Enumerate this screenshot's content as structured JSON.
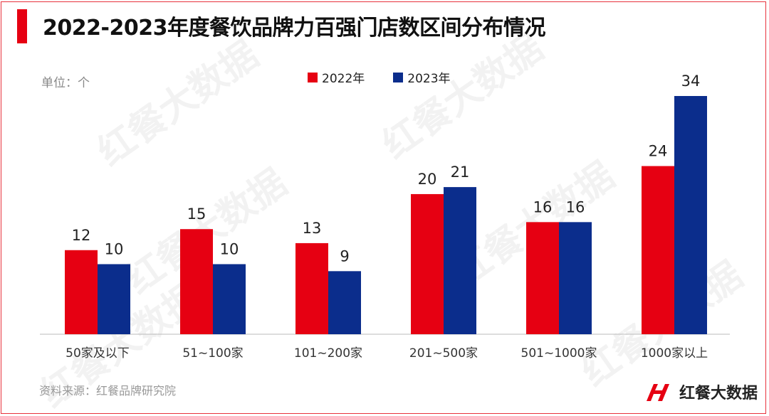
{
  "title": "2022-2023年度餐饮品牌力百强门店数区间分布情况",
  "unit_label": "单位：个",
  "source": "资料来源：红餐品牌研究院",
  "brand": "红餐大数据",
  "watermark": "红餐大数据",
  "colors": {
    "accent": "#e60012",
    "series_2022": "#e60012",
    "series_2023": "#0b2d8c"
  },
  "chart_data": {
    "type": "bar",
    "title": "2022-2023年度餐饮品牌力百强门店数区间分布情况",
    "xlabel": "",
    "ylabel": "单位：个",
    "ylim": [
      0,
      34
    ],
    "grid": false,
    "legend_position": "top",
    "categories": [
      "50家及以下",
      "51~100家",
      "101~200家",
      "201~500家",
      "501~1000家",
      "1000家以上"
    ],
    "series": [
      {
        "name": "2022年",
        "color": "#e60012",
        "values": [
          12,
          15,
          13,
          20,
          16,
          24
        ]
      },
      {
        "name": "2023年",
        "color": "#0b2d8c",
        "values": [
          10,
          10,
          9,
          21,
          16,
          34
        ]
      }
    ]
  }
}
